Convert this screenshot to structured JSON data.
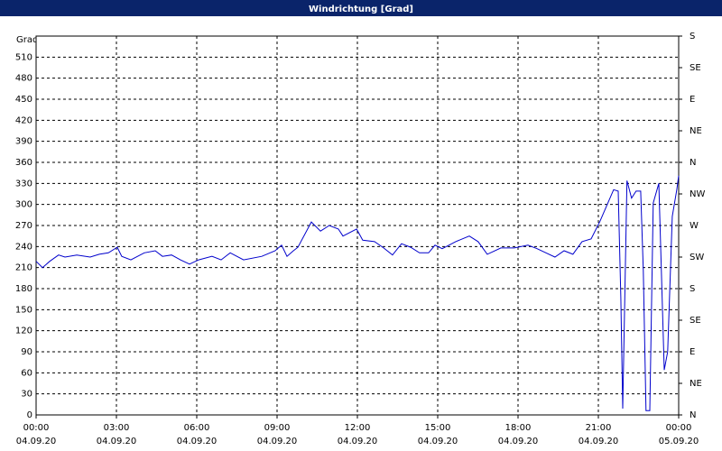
{
  "chart_data": {
    "type": "line",
    "title": "Windrichtung [Grad]",
    "y_label": "Grad",
    "xlim": [
      0,
      24
    ],
    "xticks": [
      {
        "value": 0,
        "label": "00:00",
        "sublabel": "04.09.20"
      },
      {
        "value": 3,
        "label": "03:00",
        "sublabel": "04.09.20"
      },
      {
        "value": 6,
        "label": "06:00",
        "sublabel": "04.09.20"
      },
      {
        "value": 9,
        "label": "09:00",
        "sublabel": "04.09.20"
      },
      {
        "value": 12,
        "label": "12:00",
        "sublabel": "04.09.20"
      },
      {
        "value": 15,
        "label": "15:00",
        "sublabel": "04.09.20"
      },
      {
        "value": 18,
        "label": "18:00",
        "sublabel": "04.09.20"
      },
      {
        "value": 21,
        "label": "21:00",
        "sublabel": "04.09.20"
      },
      {
        "value": 24,
        "label": "00:00",
        "sublabel": "05.09.20"
      }
    ],
    "ylim": [
      0,
      540
    ],
    "yticks": [
      0,
      30,
      60,
      90,
      120,
      150,
      180,
      210,
      240,
      270,
      300,
      330,
      360,
      390,
      420,
      450,
      480,
      510
    ],
    "y2lim": [
      0,
      540
    ],
    "y2ticks": [
      {
        "value": 0,
        "label": "N"
      },
      {
        "value": 45,
        "label": "NE"
      },
      {
        "value": 90,
        "label": "E"
      },
      {
        "value": 135,
        "label": "SE"
      },
      {
        "value": 180,
        "label": "S"
      },
      {
        "value": 225,
        "label": "SW"
      },
      {
        "value": 270,
        "label": "W"
      },
      {
        "value": 315,
        "label": "NW"
      },
      {
        "value": 360,
        "label": "N"
      },
      {
        "value": 405,
        "label": "NE"
      },
      {
        "value": 450,
        "label": "E"
      },
      {
        "value": 495,
        "label": "SE"
      },
      {
        "value": 540,
        "label": "S"
      }
    ],
    "grid": true,
    "series": [
      {
        "name": "Windrichtung",
        "color": "#0000cc",
        "x": [
          0,
          0.24,
          0.51,
          0.84,
          1.08,
          1.52,
          2.02,
          2.36,
          2.7,
          3.03,
          3.2,
          3.54,
          4.04,
          4.45,
          4.72,
          5.06,
          5.39,
          5.73,
          6.07,
          6.57,
          6.91,
          7.25,
          7.75,
          8.43,
          8.93,
          9.17,
          9.37,
          9.61,
          9.78,
          10.28,
          10.62,
          10.95,
          11.29,
          11.46,
          11.97,
          12.2,
          12.64,
          12.98,
          13.31,
          13.65,
          13.99,
          14.32,
          14.66,
          14.9,
          15.17,
          15.67,
          16.18,
          16.51,
          16.85,
          17.36,
          17.86,
          18.37,
          18.71,
          19.04,
          19.38,
          19.72,
          20.05,
          20.39,
          20.73,
          21.06,
          21.57,
          21.74,
          21.84,
          21.91,
          22.07,
          22.24,
          22.41,
          22.58,
          22.68,
          22.78,
          22.92,
          23.05,
          23.26,
          23.46,
          23.59,
          23.76,
          23.93,
          24
        ],
        "values": [
          219,
          210,
          219,
          228,
          225,
          228,
          225,
          229,
          231,
          239,
          226,
          221,
          231,
          234,
          226,
          228,
          221,
          215,
          221,
          226,
          221,
          231,
          221,
          226,
          234,
          242,
          226,
          234,
          239,
          275,
          262,
          270,
          265,
          255,
          265,
          249,
          247,
          238,
          228,
          244,
          239,
          231,
          231,
          242,
          237,
          247,
          255,
          247,
          229,
          238,
          238,
          242,
          237,
          231,
          225,
          234,
          229,
          247,
          251,
          276,
          321,
          319,
          167,
          9,
          334,
          309,
          319,
          319,
          206,
          6,
          6,
          302,
          330,
          64,
          90,
          283,
          321,
          341
        ]
      }
    ]
  }
}
